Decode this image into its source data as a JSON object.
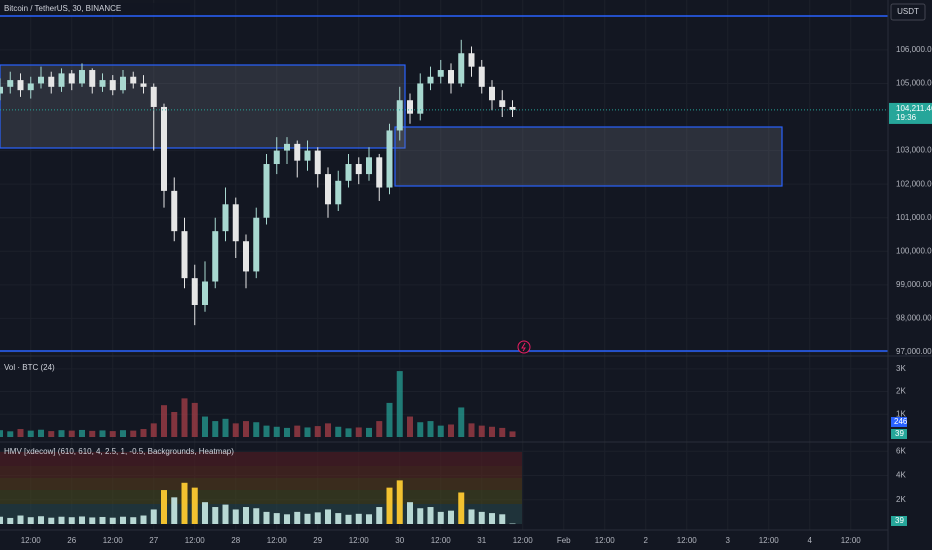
{
  "chart_data": [
    {
      "type": "candlestick",
      "title": "Bitcoin / TetherUS, 30, BINANCE",
      "currency": "USDT",
      "categories": [
        null,
        null,
        null,
        "12:00",
        null,
        null,
        null,
        "26",
        null,
        null,
        null,
        "12:00",
        null,
        null,
        null,
        "27",
        null,
        null,
        null,
        "12:00",
        null,
        null,
        null,
        "28",
        null,
        null,
        null,
        "12:00",
        null,
        null,
        null,
        "29",
        null,
        null,
        null,
        "12:00",
        null,
        null,
        null,
        "30",
        null,
        null,
        null,
        "12:00",
        null,
        null,
        null,
        "31",
        null,
        null,
        null,
        "12:00",
        null,
        null,
        null,
        "Feb",
        null,
        null,
        null,
        "12:00",
        null,
        null,
        null,
        "2",
        null,
        null,
        null,
        "12:00",
        null,
        null,
        null,
        "3",
        null,
        null,
        null,
        "12:00",
        null,
        null,
        null,
        "4",
        null,
        null,
        null,
        "12:00",
        null,
        null
      ],
      "open": [
        104700,
        104900,
        105100,
        104800,
        105000,
        105200,
        104900,
        105300,
        105000,
        105400,
        104900,
        105100,
        104800,
        105200,
        105000,
        104900,
        104300,
        101800,
        100600,
        99200,
        98400,
        99100,
        100600,
        101400,
        100300,
        99400,
        101000,
        102600,
        103000,
        103200,
        102700,
        103000,
        102300,
        101400,
        102100,
        102600,
        102300,
        102800,
        101900,
        103600,
        104500,
        104100,
        105000,
        105200,
        105400,
        105000,
        105900,
        105500,
        104900,
        104500,
        104300,
        null,
        null,
        null,
        null,
        null,
        null,
        null,
        null,
        null,
        null,
        null,
        null,
        null,
        null,
        null,
        null,
        null,
        null,
        null,
        null,
        null,
        null,
        null,
        null,
        null,
        null,
        null,
        null,
        null,
        null,
        null,
        null,
        null,
        null,
        null
      ],
      "high": [
        105150,
        105350,
        105300,
        105200,
        105500,
        105350,
        105450,
        105400,
        105600,
        105450,
        105300,
        105250,
        105400,
        105350,
        105250,
        105000,
        104400,
        102200,
        101000,
        99600,
        99700,
        101000,
        101900,
        101600,
        100500,
        101300,
        102900,
        103400,
        103400,
        103300,
        103300,
        103100,
        102500,
        102400,
        102900,
        102800,
        103100,
        102900,
        103800,
        104900,
        104700,
        105300,
        105500,
        105700,
        105600,
        106300,
        106100,
        105700,
        105100,
        104800,
        104500,
        null,
        null,
        null,
        null,
        null,
        null,
        null,
        null,
        null,
        null,
        null,
        null,
        null,
        null,
        null,
        null,
        null,
        null,
        null,
        null,
        null,
        null,
        null,
        null,
        null,
        null,
        null,
        null,
        null,
        null,
        null,
        null,
        null,
        null,
        null
      ],
      "low": [
        104500,
        104700,
        104600,
        104550,
        104850,
        104700,
        104750,
        104800,
        104900,
        104700,
        104750,
        104650,
        104700,
        104850,
        104700,
        103000,
        101300,
        100300,
        98900,
        97800,
        98200,
        98900,
        100300,
        99800,
        98900,
        99200,
        100800,
        102300,
        102600,
        102200,
        102400,
        101900,
        101000,
        101200,
        101900,
        102000,
        102100,
        101500,
        101700,
        103300,
        103800,
        103900,
        104800,
        105000,
        104700,
        104900,
        105200,
        104700,
        104200,
        104000,
        104000,
        null,
        null,
        null,
        null,
        null,
        null,
        null,
        null,
        null,
        null,
        null,
        null,
        null,
        null,
        null,
        null,
        null,
        null,
        null,
        null,
        null,
        null,
        null,
        null,
        null,
        null,
        null,
        null,
        null,
        null,
        null,
        null,
        null,
        null,
        null
      ],
      "close": [
        104900,
        105100,
        104800,
        105000,
        105200,
        104900,
        105300,
        105000,
        105400,
        104900,
        105100,
        104800,
        105200,
        105000,
        104900,
        104300,
        101800,
        100600,
        99200,
        98400,
        99100,
        100600,
        101400,
        100300,
        99400,
        101000,
        102600,
        103000,
        103200,
        102700,
        103000,
        102300,
        101400,
        102100,
        102600,
        102300,
        102800,
        101900,
        103600,
        104500,
        104100,
        105000,
        105200,
        105400,
        105000,
        105900,
        105500,
        104900,
        104500,
        104300,
        104211.46,
        null,
        null,
        null,
        null,
        null,
        null,
        null,
        null,
        null,
        null,
        null,
        null,
        null,
        null,
        null,
        null,
        null,
        null,
        null,
        null,
        null,
        null,
        null,
        null,
        null,
        null,
        null,
        null,
        null,
        null,
        null,
        null,
        null,
        null,
        null
      ],
      "up_color": "#a8d8d0",
      "down_color": "#e6e6e6",
      "last_price": {
        "value": 104211.46,
        "label": "104,211.46"
      },
      "countdown": "19:36",
      "ylim": [
        97000,
        106950
      ],
      "yticks": [
        {
          "value": 106000,
          "label": "106,000.00"
        },
        {
          "value": 105000,
          "label": "105,000.00"
        },
        {
          "value": 103000,
          "label": "103,000.00"
        },
        {
          "value": 102000,
          "label": "102,000.00"
        },
        {
          "value": 101000,
          "label": "101,000.00"
        },
        {
          "value": 100000,
          "label": "100,000.00"
        },
        {
          "value": 99000,
          "label": "99,000.00"
        },
        {
          "value": 98000,
          "label": "98,000.00"
        },
        {
          "value": 97000,
          "label": "97,000.00"
        }
      ],
      "grid": true
    },
    {
      "type": "bar",
      "title": "Vol · BTC (24)",
      "values": [
        300,
        250,
        350,
        280,
        320,
        260,
        300,
        280,
        310,
        270,
        290,
        260,
        300,
        280,
        350,
        600,
        1400,
        1100,
        1700,
        1500,
        900,
        700,
        800,
        600,
        700,
        650,
        500,
        450,
        400,
        500,
        420,
        480,
        600,
        450,
        380,
        420,
        400,
        700,
        1500,
        2900,
        900,
        650,
        700,
        500,
        550,
        1300,
        600,
        500,
        450,
        400,
        246,
        null,
        null,
        null,
        null,
        null,
        null,
        null,
        null,
        null,
        null,
        null,
        null,
        null,
        null,
        null,
        null,
        null,
        null,
        null,
        null,
        null,
        null,
        null,
        null,
        null,
        null,
        null,
        null,
        null,
        null,
        null,
        null,
        null,
        null,
        null
      ],
      "ma_value": 39,
      "ylim": [
        0,
        3300
      ],
      "yticks": [
        {
          "value": 3000,
          "label": "3K"
        },
        {
          "value": 2000,
          "label": "2K"
        },
        {
          "value": 1000,
          "label": "1K"
        }
      ]
    },
    {
      "type": "bar",
      "title": "HMV [xdecow] (610, 610, 4, 2.5, 1, -0.5, Backgrounds, Heatmap)",
      "values": [
        600,
        500,
        700,
        560,
        640,
        520,
        600,
        560,
        620,
        540,
        580,
        520,
        600,
        560,
        700,
        1200,
        2800,
        2200,
        3400,
        3000,
        1800,
        1400,
        1600,
        1200,
        1400,
        1300,
        1000,
        900,
        800,
        1000,
        840,
        960,
        1200,
        900,
        760,
        840,
        800,
        1400,
        3000,
        3600,
        1800,
        1300,
        1400,
        1000,
        1100,
        2600,
        1200,
        1000,
        900,
        800,
        39,
        null,
        null,
        null,
        null,
        null,
        null,
        null,
        null,
        null,
        null,
        null,
        null,
        null,
        null,
        null,
        null,
        null,
        null,
        null,
        null,
        null,
        null,
        null,
        null,
        null,
        null,
        null,
        null,
        null,
        null,
        null,
        null,
        null,
        null,
        null
      ],
      "colors": [
        "#b8d8d4",
        "#b8d8d4",
        "#b8d8d4",
        "#b8d8d4",
        "#b8d8d4",
        "#b8d8d4",
        "#b8d8d4",
        "#b8d8d4",
        "#b8d8d4",
        "#b8d8d4",
        "#b8d8d4",
        "#b8d8d4",
        "#b8d8d4",
        "#b8d8d4",
        "#b8d8d4",
        "#b8d8d4",
        "#f2c230",
        "#b8d8d4",
        "#f2c230",
        "#f2c230",
        "#b8d8d4",
        "#b8d8d4",
        "#b8d8d4",
        "#b8d8d4",
        "#b8d8d4",
        "#b8d8d4",
        "#b8d8d4",
        "#b8d8d4",
        "#b8d8d4",
        "#b8d8d4",
        "#b8d8d4",
        "#b8d8d4",
        "#b8d8d4",
        "#b8d8d4",
        "#b8d8d4",
        "#b8d8d4",
        "#b8d8d4",
        "#b8d8d4",
        "#f2c230",
        "#f2c230",
        "#b8d8d4",
        "#b8d8d4",
        "#b8d8d4",
        "#b8d8d4",
        "#b8d8d4",
        "#f2c230",
        "#b8d8d4",
        "#b8d8d4",
        "#b8d8d4",
        "#b8d8d4",
        "#b8d8d4",
        null,
        null,
        null,
        null,
        null,
        null,
        null,
        null,
        null,
        null,
        null,
        null,
        null,
        null,
        null,
        null,
        null,
        null,
        null,
        null,
        null,
        null,
        null,
        null,
        null,
        null,
        null,
        null,
        null,
        null,
        null,
        null,
        null,
        null,
        null
      ],
      "ylim": [
        0,
        6600
      ],
      "yticks": [
        {
          "value": 6000,
          "label": "6K"
        },
        {
          "value": 4000,
          "label": "4K"
        },
        {
          "value": 2000,
          "label": "2K"
        }
      ]
    }
  ]
}
